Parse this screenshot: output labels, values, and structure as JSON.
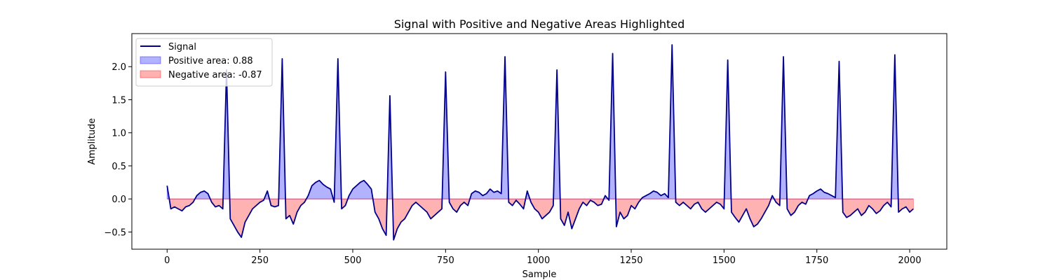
{
  "chart_data": {
    "type": "line",
    "title": "Signal with Positive and Negative Areas Highlighted",
    "xlabel": "Sample",
    "ylabel": "Amplitude",
    "xlim": [
      -95,
      2100
    ],
    "ylim": [
      -0.76,
      2.5
    ],
    "x_ticks": [
      0,
      250,
      500,
      750,
      1000,
      1250,
      1500,
      1750,
      2000
    ],
    "y_ticks": [
      -0.5,
      0.0,
      0.5,
      1.0,
      1.5,
      2.0,
      2.5
    ],
    "y_tick_labels": [
      "−0.5",
      "0.0",
      "0.5",
      "1.0",
      "1.5",
      "2.0",
      ""
    ],
    "grid": false,
    "legend_position": "top-left",
    "legend": [
      {
        "label": "Signal",
        "kind": "line",
        "color": "#00008b"
      },
      {
        "label": "Positive area: 0.88",
        "kind": "patch",
        "color": "#0000ff",
        "alpha": 0.3
      },
      {
        "label": "Negative area: -0.87",
        "kind": "patch",
        "color": "#ff0000",
        "alpha": 0.3
      }
    ],
    "series": [
      {
        "name": "Signal",
        "color": "#00008b",
        "x_start": 0,
        "x_step": 10,
        "values": [
          0.2,
          -0.15,
          -0.12,
          -0.15,
          -0.18,
          -0.12,
          -0.1,
          -0.05,
          0.05,
          0.1,
          0.12,
          0.08,
          -0.05,
          -0.12,
          -0.1,
          -0.15,
          1.95,
          -0.3,
          -0.4,
          -0.5,
          -0.58,
          -0.35,
          -0.25,
          -0.15,
          -0.1,
          -0.05,
          -0.02,
          0.12,
          -0.1,
          -0.12,
          -0.1,
          2.12,
          -0.3,
          -0.25,
          -0.38,
          -0.2,
          -0.1,
          -0.05,
          0.05,
          0.2,
          0.25,
          0.28,
          0.22,
          0.18,
          0.15,
          -0.05,
          2.12,
          -0.15,
          -0.1,
          0.05,
          0.15,
          0.2,
          0.25,
          0.28,
          0.22,
          0.15,
          -0.2,
          -0.3,
          -0.45,
          -0.55,
          1.56,
          -0.62,
          -0.45,
          -0.35,
          -0.3,
          -0.2,
          -0.1,
          -0.05,
          -0.1,
          -0.15,
          -0.2,
          -0.3,
          -0.25,
          -0.2,
          -0.15,
          1.92,
          -0.05,
          -0.15,
          -0.2,
          -0.1,
          -0.05,
          -0.1,
          0.08,
          0.12,
          0.1,
          0.05,
          0.08,
          0.15,
          0.1,
          0.12,
          0.08,
          2.15,
          -0.05,
          -0.1,
          -0.02,
          -0.08,
          -0.15,
          0.12,
          -0.05,
          -0.15,
          -0.2,
          -0.3,
          -0.25,
          -0.2,
          -0.1,
          1.95,
          -0.3,
          -0.4,
          -0.2,
          -0.45,
          -0.3,
          -0.15,
          -0.05,
          -0.1,
          -0.02,
          -0.05,
          -0.1,
          -0.08,
          0.05,
          -0.02,
          2.2,
          -0.42,
          -0.2,
          -0.3,
          -0.25,
          -0.1,
          -0.15,
          -0.05,
          0.02,
          0.05,
          0.08,
          0.12,
          0.1,
          0.05,
          0.08,
          0.02,
          2.33,
          -0.05,
          -0.1,
          -0.05,
          -0.1,
          -0.15,
          -0.08,
          -0.05,
          -0.15,
          -0.2,
          -0.15,
          -0.1,
          -0.05,
          -0.08,
          -0.15,
          2.1,
          -0.2,
          -0.28,
          -0.35,
          -0.25,
          -0.15,
          -0.3,
          -0.42,
          -0.38,
          -0.3,
          -0.2,
          -0.1,
          0.05,
          -0.05,
          -0.1,
          2.15,
          -0.15,
          -0.25,
          -0.2,
          -0.1,
          -0.05,
          -0.08,
          0.05,
          0.08,
          0.12,
          0.15,
          0.1,
          0.08,
          0.05,
          0.02,
          2.08,
          -0.2,
          -0.28,
          -0.25,
          -0.2,
          -0.15,
          -0.25,
          -0.2,
          -0.1,
          -0.15,
          -0.22,
          -0.18,
          -0.1,
          -0.05,
          -0.12,
          2.18,
          -0.2,
          -0.15,
          -0.12,
          -0.2,
          -0.15
        ]
      }
    ],
    "fill_positive": {
      "color": "#0000ff",
      "alpha": 0.3,
      "edge": "#0000ff"
    },
    "fill_negative": {
      "color": "#ff0000",
      "alpha": 0.3,
      "edge": "#ff0000"
    }
  }
}
